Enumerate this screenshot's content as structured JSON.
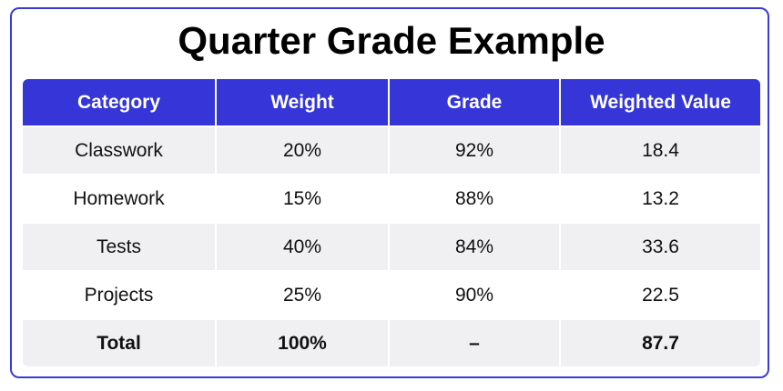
{
  "title": "Quarter Grade Example",
  "table": {
    "header": [
      "Category",
      "Weight",
      "Grade",
      "Weighted Value"
    ],
    "rows": [
      [
        "Classwork",
        "20%",
        "92%",
        "18.4"
      ],
      [
        "Homework",
        "15%",
        "88%",
        "13.2"
      ],
      [
        "Tests",
        "40%",
        "84%",
        "33.6"
      ],
      [
        "Projects",
        "25%",
        "90%",
        "22.5"
      ]
    ],
    "total": [
      "Total",
      "100%",
      "–",
      "87.7"
    ]
  }
}
